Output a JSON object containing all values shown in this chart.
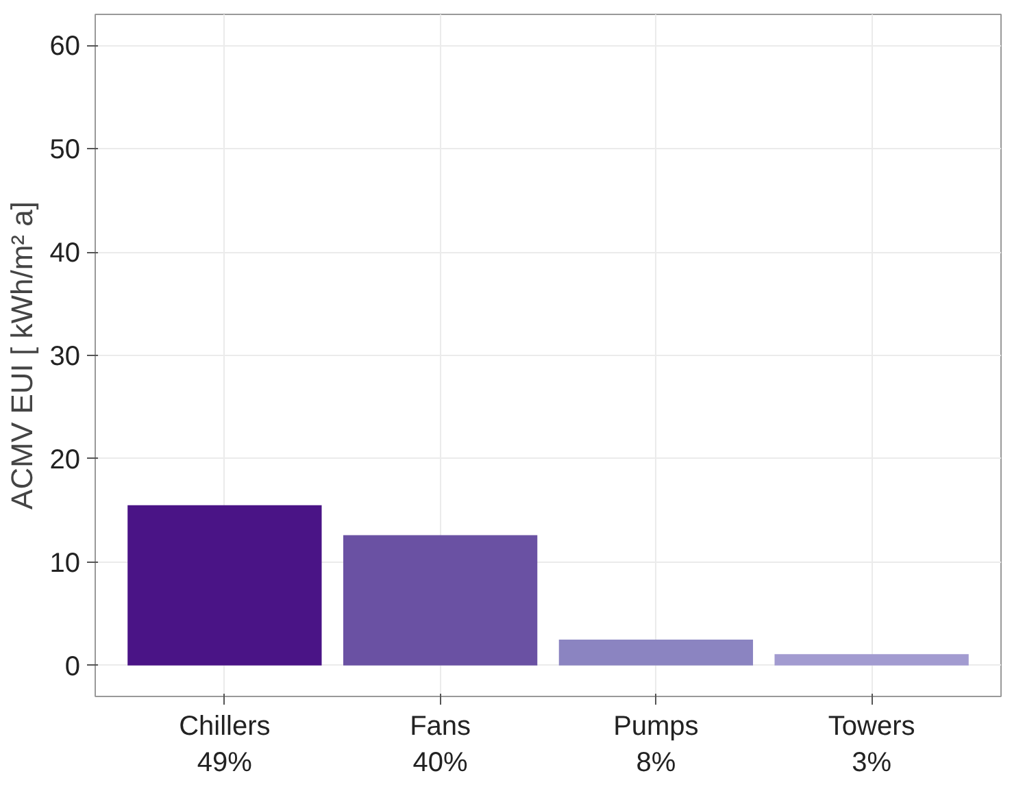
{
  "chart_data": {
    "type": "bar",
    "categories": [
      "Chillers\n49%",
      "Fans\n40%",
      "Pumps\n8%",
      "Towers\n3%"
    ],
    "values": [
      15.5,
      12.6,
      2.5,
      1.1
    ],
    "colors": [
      "#4a1486",
      "#6a51a3",
      "#8b84c1",
      "#a29bd0"
    ],
    "ylabel": "ACMV EUI [ kWh/m² a]",
    "ylim": [
      -3,
      63
    ],
    "yticks": [
      0,
      10,
      20,
      30,
      40,
      50,
      60
    ],
    "grid": true
  }
}
